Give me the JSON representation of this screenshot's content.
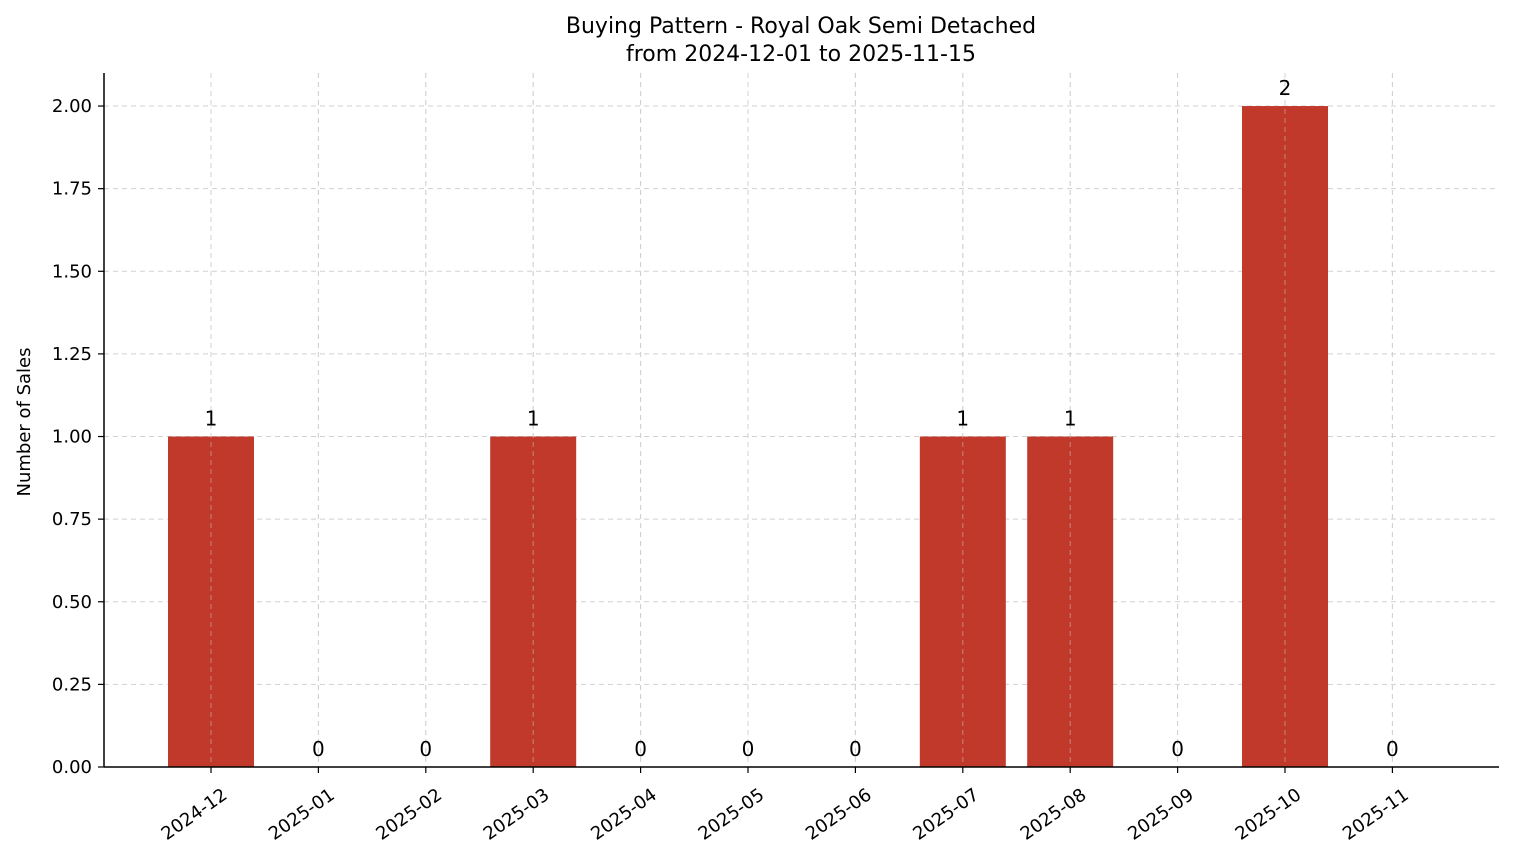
{
  "chart_data": {
    "type": "bar",
    "title": "Buying Pattern - Royal Oak Semi Detached",
    "subtitle": "from 2024-12-01 to 2025-11-15",
    "xlabel": "",
    "ylabel": "Number of Sales",
    "categories": [
      "2024-12",
      "2025-01",
      "2025-02",
      "2025-03",
      "2025-04",
      "2025-05",
      "2025-06",
      "2025-07",
      "2025-08",
      "2025-09",
      "2025-10",
      "2025-11"
    ],
    "values": [
      1,
      0,
      0,
      1,
      0,
      0,
      0,
      1,
      1,
      0,
      2,
      0
    ],
    "ylim": [
      0,
      2.1
    ],
    "yticks": [
      "0.00",
      "0.25",
      "0.50",
      "0.75",
      "1.00",
      "1.25",
      "1.50",
      "1.75",
      "2.00"
    ],
    "grid": true,
    "bar_color": "#c0392b"
  }
}
